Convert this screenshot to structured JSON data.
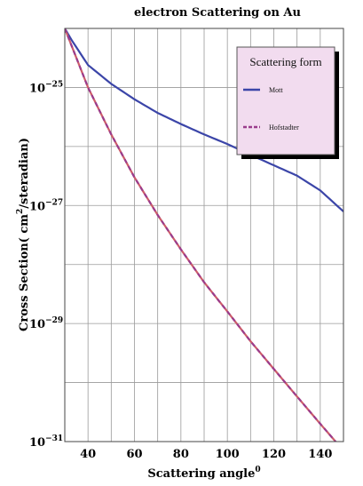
{
  "chart_data": {
    "type": "line",
    "title": "electron Scattering on Au",
    "xlabel": "Scattering angle",
    "xlabel_sup": "0",
    "ylabel_pre": "Cross Section( cm",
    "ylabel_sup": "2",
    "ylabel_post": "/steradian)",
    "xlim": [
      30,
      150
    ],
    "ylim": [
      1e-31,
      1e-24
    ],
    "yscale": "log",
    "grid": true,
    "x_ticks": [
      {
        "value": 40,
        "label": "40"
      },
      {
        "value": 60,
        "label": "60"
      },
      {
        "value": 80,
        "label": "80"
      },
      {
        "value": 100,
        "label": "100"
      },
      {
        "value": 120,
        "label": "120"
      },
      {
        "value": 140,
        "label": "140"
      }
    ],
    "y_ticks": [
      {
        "exp": -25,
        "base": "10",
        "power": "−25"
      },
      {
        "exp": -27,
        "base": "10",
        "power": "−27"
      },
      {
        "exp": -29,
        "base": "10",
        "power": "−29"
      },
      {
        "exp": -31,
        "base": "10",
        "power": "−31"
      }
    ],
    "legend": {
      "title": "Scattering form",
      "placement": "top-right"
    },
    "series": [
      {
        "name": "Mott",
        "color": "#3b45a8",
        "style": "solid",
        "points": [
          [
            30,
            1e-24
          ],
          [
            33,
            6.3e-25
          ],
          [
            40,
            2.4e-25
          ],
          [
            50,
            1.15e-25
          ],
          [
            60,
            6.3e-26
          ],
          [
            70,
            3.7e-26
          ],
          [
            80,
            2.4e-26
          ],
          [
            90,
            1.6e-26
          ],
          [
            100,
            1.1e-26
          ],
          [
            110,
            7.2e-27
          ],
          [
            120,
            4.8e-27
          ],
          [
            130,
            3.2e-27
          ],
          [
            140,
            1.8e-27
          ],
          [
            150,
            7.9e-28
          ]
        ]
      },
      {
        "name": "Hofstadter",
        "color": "#9a3c8c",
        "style": "dashed",
        "points": [
          [
            30,
            1e-24
          ],
          [
            40,
            1e-25
          ],
          [
            50,
            1.6e-26
          ],
          [
            60,
            3e-27
          ],
          [
            70,
            6.9e-28
          ],
          [
            80,
            1.8e-28
          ],
          [
            90,
            5e-29
          ],
          [
            100,
            1.6e-29
          ],
          [
            110,
            5e-30
          ],
          [
            120,
            1.7e-30
          ],
          [
            130,
            5.8e-31
          ],
          [
            140,
            2e-31
          ],
          [
            150,
            7e-32
          ]
        ]
      }
    ]
  }
}
